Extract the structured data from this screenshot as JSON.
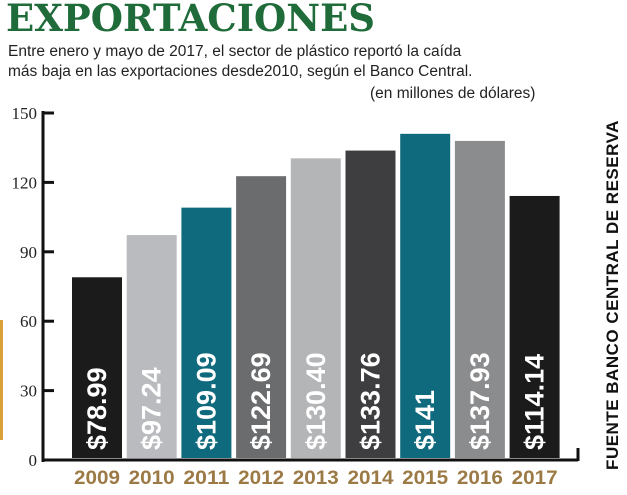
{
  "title": "EXPORTACIONES",
  "subtitle_line1": "Entre enero y mayo de 2017, el sector de plástico reportó la caída",
  "subtitle_line2": "más baja en las exportaciones desde2010, según el Banco Central.",
  "units": "(en millones de dólares)",
  "source": "FUENTE BANCO CENTRAL DE RESERVA",
  "chart_data": {
    "type": "bar",
    "title": "EXPORTACIONES",
    "ylabel": "(en millones de dólares)",
    "ylim": [
      0,
      150
    ],
    "yticks": [
      0,
      30,
      60,
      90,
      120,
      150
    ],
    "categories": [
      "2009",
      "2010",
      "2011",
      "2012",
      "2013",
      "2014",
      "2015",
      "2016",
      "2017"
    ],
    "values": [
      78.99,
      97.24,
      109.09,
      122.69,
      130.4,
      133.76,
      141,
      137.93,
      114.14
    ],
    "labels": [
      "$78.99",
      "$97.24",
      "$109.09",
      "$122.69",
      "$130.40",
      "$133.76",
      "$141",
      "$137.93",
      "$114.14"
    ],
    "colors": [
      "#1b1b1b",
      "#b9bbbe",
      "#0f6a7e",
      "#6b6c6e",
      "#b4b5b7",
      "#3e3e40",
      "#0f6a7e",
      "#8b8c8e",
      "#1b1b1b"
    ],
    "category_color": "#9c7a45"
  }
}
